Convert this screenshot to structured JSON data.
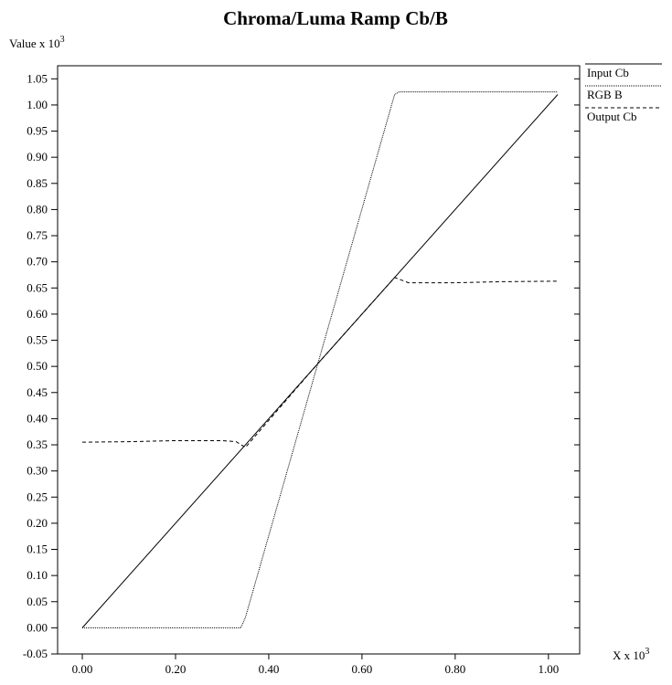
{
  "chart_data": {
    "type": "line",
    "title": "Chroma/Luma Ramp Cb/B",
    "y_label": "Value x 10",
    "y_label_exponent": "3",
    "x_label": "X x 10",
    "x_label_exponent": "3",
    "xlim": [
      -0.053,
      1.067
    ],
    "ylim": [
      -0.05,
      1.075
    ],
    "xticks": [
      {
        "value": 0,
        "label": "0.00"
      },
      {
        "value": 0.2,
        "label": "0.20"
      },
      {
        "value": 0.4,
        "label": "0.40"
      },
      {
        "value": 0.6,
        "label": "0.60"
      },
      {
        "value": 0.8,
        "label": "0.80"
      },
      {
        "value": 1,
        "label": "1.00"
      }
    ],
    "yticks": [
      {
        "value": -0.05,
        "label": "-0.05"
      },
      {
        "value": 0,
        "label": "0.00"
      },
      {
        "value": 0.05,
        "label": "0.05"
      },
      {
        "value": 0.1,
        "label": "0.10"
      },
      {
        "value": 0.15,
        "label": "0.15"
      },
      {
        "value": 0.2,
        "label": "0.20"
      },
      {
        "value": 0.25,
        "label": "0.25"
      },
      {
        "value": 0.3,
        "label": "0.30"
      },
      {
        "value": 0.35,
        "label": "0.35"
      },
      {
        "value": 0.4,
        "label": "0.40"
      },
      {
        "value": 0.45,
        "label": "0.45"
      },
      {
        "value": 0.5,
        "label": "0.50"
      },
      {
        "value": 0.55,
        "label": "0.55"
      },
      {
        "value": 0.6,
        "label": "0.60"
      },
      {
        "value": 0.65,
        "label": "0.65"
      },
      {
        "value": 0.7,
        "label": "0.70"
      },
      {
        "value": 0.75,
        "label": "0.75"
      },
      {
        "value": 0.8,
        "label": "0.80"
      },
      {
        "value": 0.85,
        "label": "0.85"
      },
      {
        "value": 0.9,
        "label": "0.90"
      },
      {
        "value": 0.95,
        "label": "0.95"
      },
      {
        "value": 1,
        "label": "1.00"
      },
      {
        "value": 1.05,
        "label": "1.05"
      }
    ],
    "series": [
      {
        "name": "Input Cb",
        "color": "#000000",
        "dash": "none",
        "x": [
          0,
          1.02
        ],
        "values": [
          0,
          1.02
        ]
      },
      {
        "name": "RGB B",
        "color": "#000000",
        "dash": "1,1",
        "x": [
          0,
          0.34,
          0.35,
          0.67,
          0.68,
          1.02
        ],
        "values": [
          0,
          0,
          0.02,
          1.02,
          1.025,
          1.025
        ]
      },
      {
        "name": "Output Cb",
        "color": "#000000",
        "dash": "4,3",
        "x": [
          0,
          0.1,
          0.2,
          0.3,
          0.33,
          0.35,
          0.5,
          0.67,
          0.7,
          0.8,
          0.9,
          1.02
        ],
        "values": [
          0.355,
          0.356,
          0.358,
          0.358,
          0.356,
          0.345,
          0.5,
          0.67,
          0.66,
          0.66,
          0.662,
          0.663
        ]
      }
    ]
  }
}
